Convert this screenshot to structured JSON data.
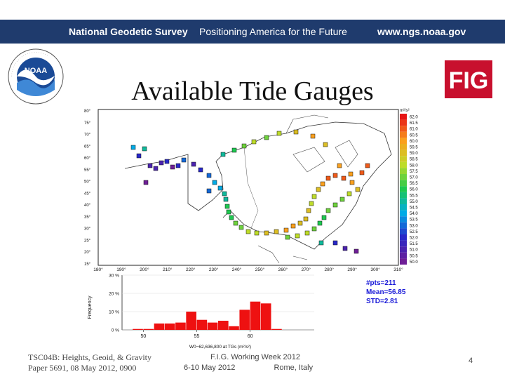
{
  "banner": {
    "brand": "National Geodetic Survey",
    "slogan": "Positioning America for the Future",
    "url": "www.ngs.noaa.gov",
    "color": "#1f3b6d"
  },
  "logos": {
    "noaa": "NOAA",
    "fig": "FIG"
  },
  "slide": {
    "title": "Available Tide Gauges"
  },
  "map": {
    "lat_ticks": [
      "80°",
      "75°",
      "70°",
      "65°",
      "60°",
      "55°",
      "50°",
      "45°",
      "40°",
      "35°",
      "30°",
      "25°",
      "20°",
      "15°"
    ],
    "lon_ticks": [
      "180°",
      "190°",
      "200°",
      "210°",
      "220°",
      "230°",
      "240°",
      "250°",
      "260°",
      "270°",
      "280°",
      "290°",
      "300°",
      "310°"
    ],
    "colorbar_unit": "m²/s²",
    "colorbar_labels": [
      "62.0",
      "61.5",
      "61.0",
      "60.5",
      "60.0",
      "59.5",
      "59.0",
      "58.5",
      "58.0",
      "57.5",
      "57.0",
      "56.5",
      "56.0",
      "55.5",
      "55.0",
      "54.5",
      "54.0",
      "53.5",
      "53.0",
      "52.5",
      "52.0",
      "51.5",
      "51.0",
      "50.5",
      "50.0"
    ]
  },
  "chart_data": {
    "type": "bar",
    "title": "",
    "xlabel": "W0−62,636,800 at TGs (m²/s²)",
    "ylabel": "Frequency",
    "xlim": [
      48,
      66
    ],
    "ylim": [
      0,
      30
    ],
    "x_ticks": [
      "50",
      "55",
      "60"
    ],
    "y_ticks": [
      "0 %",
      "10 %",
      "20 %",
      "30 %"
    ],
    "bin_starts": [
      49,
      50,
      51,
      52,
      53,
      54,
      55,
      56,
      57,
      58,
      59,
      60,
      61,
      62
    ],
    "values": [
      0.5,
      0.5,
      3.5,
      3.5,
      4.0,
      10.0,
      5.5,
      4.0,
      5.0,
      2.0,
      11.0,
      15.5,
      14.5,
      0.5
    ],
    "bar_color": "#ee1111",
    "stats": [
      "#pts=211",
      "Mean=56.85",
      "STD=2.81"
    ],
    "stats_color": "#1a1ad8"
  },
  "footer": {
    "left_line1": "TSC04B: Heights, Geoid, & Gravity",
    "left_line2": "Paper 5691, 08 May 2012, 0900",
    "mid_line1": "F.I.G. Working Week 2012",
    "mid_date": "6-10 May 2012",
    "mid_place": "Rome, Italy",
    "page": "4"
  }
}
